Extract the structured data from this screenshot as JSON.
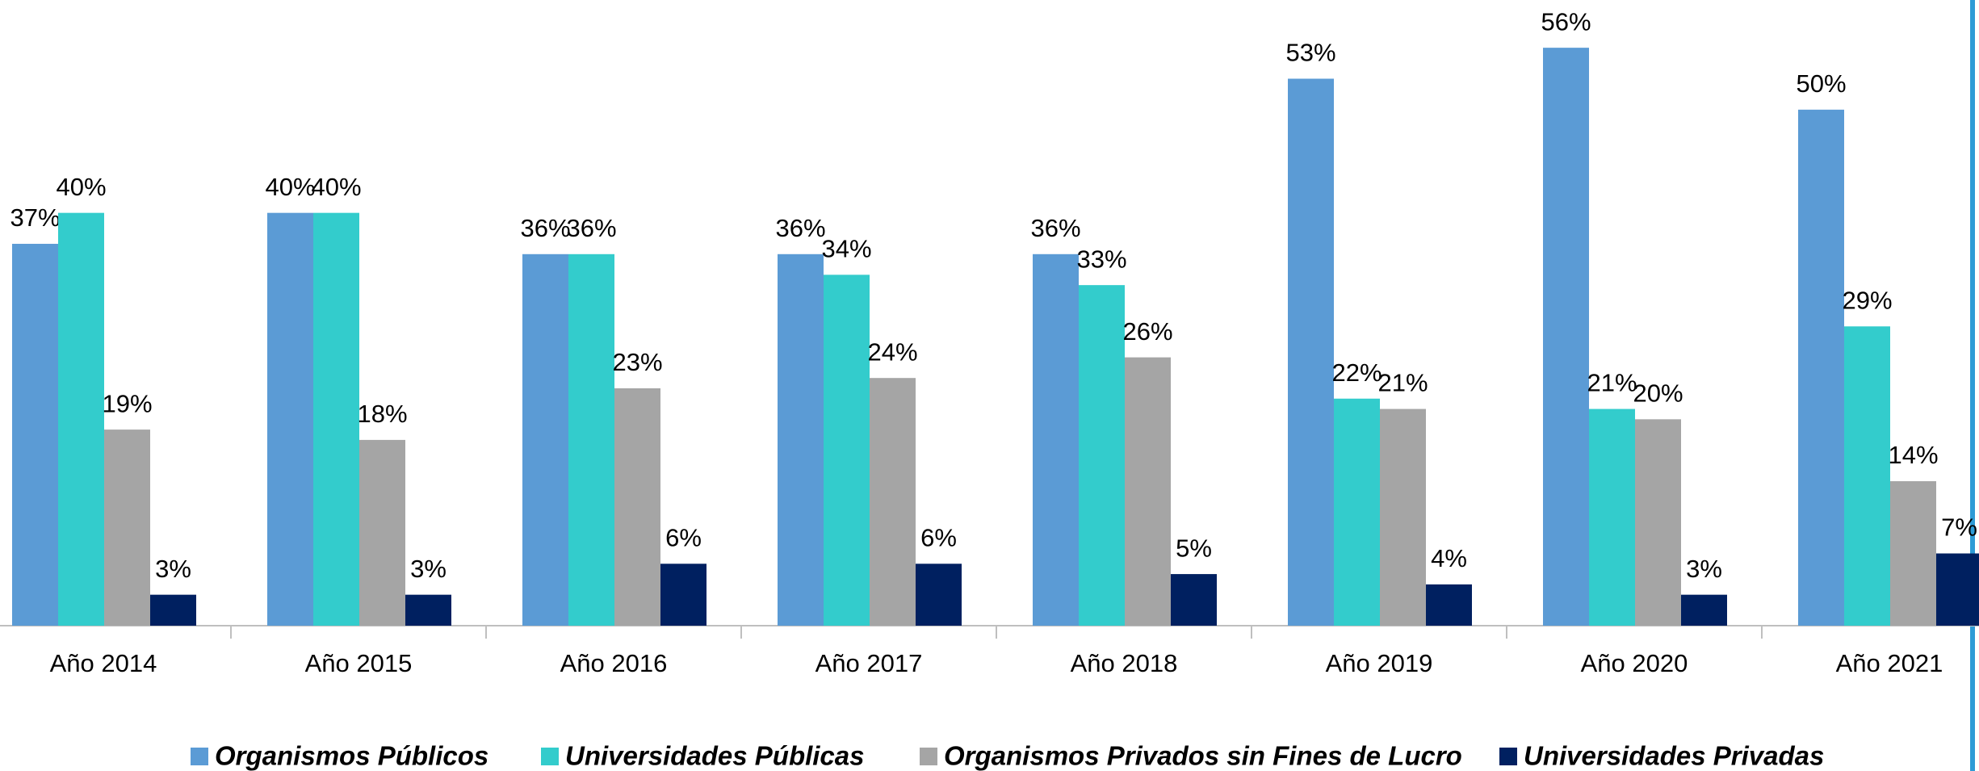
{
  "chart_data": {
    "type": "bar",
    "categories": [
      "Año 2014",
      "Año 2015",
      "Año 2016",
      "Año 2017",
      "Año 2018",
      "Año 2019",
      "Año 2020",
      "Año 2021"
    ],
    "series": [
      {
        "name": "Organismos Públicos",
        "color": "#5b9bd5",
        "values": [
          37,
          40,
          36,
          36,
          36,
          53,
          56,
          50
        ],
        "value_labels": [
          "37%",
          "40%",
          "36%",
          "36%",
          "36%",
          "53%",
          "56%",
          "50%"
        ]
      },
      {
        "name": "Universidades Públicas",
        "color": "#33cccc",
        "values": [
          40,
          40,
          36,
          34,
          33,
          22,
          21,
          29
        ],
        "value_labels": [
          "40%",
          "40%",
          "36%",
          "34%",
          "33%",
          "22%",
          "21%",
          "29%"
        ]
      },
      {
        "name": "Organismos Privados sin Fines de Lucro",
        "color": "#a5a5a5",
        "values": [
          19,
          18,
          23,
          24,
          26,
          21,
          20,
          14
        ],
        "value_labels": [
          "19%",
          "18%",
          "23%",
          "24%",
          "26%",
          "21%",
          "20%",
          "14%"
        ]
      },
      {
        "name": "Universidades Privadas",
        "color": "#002060",
        "values": [
          3,
          3,
          6,
          6,
          5,
          4,
          3,
          7
        ],
        "value_labels": [
          "3%",
          "3%",
          "6%",
          "6%",
          "5%",
          "4%",
          "3%",
          "7%"
        ]
      }
    ],
    "ylim": [
      0,
      60
    ],
    "legend": "bottom"
  }
}
